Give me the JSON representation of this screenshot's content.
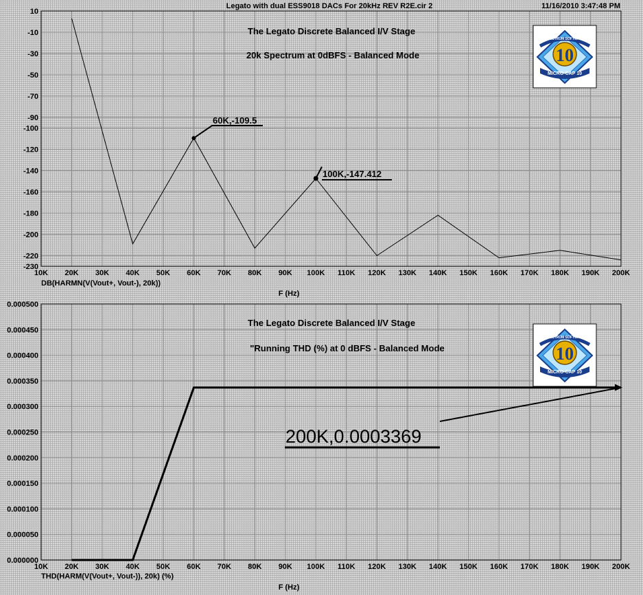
{
  "header": {
    "title": "Legato with dual ESS9018 DACs For 20kHz REV R2E.cir 2",
    "timestamp": "11/16/2010 3:47:48 PM"
  },
  "colors": {
    "background": "#c8c8c8",
    "grid": "#8c8c8c",
    "trace": "#000000",
    "logo_blue": "#4aa8e8",
    "logo_gold": "#e8b000"
  },
  "logo": {
    "number": "10",
    "ribbon": "MICRO-CAP 10",
    "top_text": "SPECTRUM SOFTWARE",
    "icon": "microcap-10-logo"
  },
  "chart_data": [
    {
      "type": "line",
      "title_lines": [
        "The Legato Discrete Balanced I/V Stage",
        "20k Spectrum at 0dBFS - Balanced Mode"
      ],
      "x": [
        20000,
        40000,
        60000,
        80000,
        100000,
        120000,
        140000,
        160000,
        180000,
        200000
      ],
      "y": [
        3,
        -209,
        -109.5,
        -213,
        -147.412,
        -220,
        -182,
        -222,
        -215,
        -224
      ],
      "xlim": [
        10000,
        200000
      ],
      "ylim": [
        -230,
        10
      ],
      "x_ticks": [
        "10K",
        "20K",
        "30K",
        "40K",
        "50K",
        "60K",
        "70K",
        "80K",
        "90K",
        "100K",
        "110K",
        "120K",
        "130K",
        "140K",
        "150K",
        "160K",
        "170K",
        "180K",
        "190K",
        "200K"
      ],
      "y_ticks": [
        {
          "v": 10,
          "label": "10"
        },
        {
          "v": -10,
          "label": "-10"
        },
        {
          "v": -30,
          "label": "-30"
        },
        {
          "v": -50,
          "label": "-50"
        },
        {
          "v": -70,
          "label": "-70"
        },
        {
          "v": -90,
          "label": "-90"
        },
        {
          "v": -100,
          "label": "-100"
        },
        {
          "v": -120,
          "label": "-120"
        },
        {
          "v": -140,
          "label": "-140"
        },
        {
          "v": -160,
          "label": "-160"
        },
        {
          "v": -180,
          "label": "-180"
        },
        {
          "v": -200,
          "label": "-200"
        },
        {
          "v": -220,
          "label": "-220"
        },
        {
          "v": -230,
          "label": "-230"
        }
      ],
      "xlabel": "F (Hz)",
      "ylabel": "DB(HARMN(V(Vout+, Vout-), 20k))",
      "annotations": [
        {
          "x": 60000,
          "y": -109.5,
          "text": "60K,-109.5"
        },
        {
          "x": 100000,
          "y": -147.412,
          "text": "100K,-147.412"
        }
      ],
      "grid": true
    },
    {
      "type": "line",
      "title_lines": [
        "The Legato Discrete Balanced I/V Stage",
        "\"Running THD (%) at 0 dBFS - Balanced Mode"
      ],
      "x": [
        20000,
        40000,
        60000,
        200000
      ],
      "y": [
        0,
        0,
        0.0003369,
        0.0003369
      ],
      "xlim": [
        10000,
        200000
      ],
      "ylim": [
        0,
        0.0005
      ],
      "x_ticks": [
        "10K",
        "20K",
        "30K",
        "40K",
        "50K",
        "60K",
        "70K",
        "80K",
        "90K",
        "100K",
        "110K",
        "120K",
        "130K",
        "140K",
        "150K",
        "160K",
        "170K",
        "180K",
        "190K",
        "200K"
      ],
      "y_ticks": [
        {
          "v": 0.0005,
          "label": "0.000500"
        },
        {
          "v": 0.00045,
          "label": "0.000450"
        },
        {
          "v": 0.0004,
          "label": "0.000400"
        },
        {
          "v": 0.00035,
          "label": "0.000350"
        },
        {
          "v": 0.0003,
          "label": "0.000300"
        },
        {
          "v": 0.00025,
          "label": "0.000250"
        },
        {
          "v": 0.0002,
          "label": "0.000200"
        },
        {
          "v": 0.00015,
          "label": "0.000150"
        },
        {
          "v": 0.0001,
          "label": "0.000100"
        },
        {
          "v": 5e-05,
          "label": "0.000050"
        },
        {
          "v": 0,
          "label": "0.000000"
        }
      ],
      "xlabel": "F (Hz)",
      "ylabel": "THD(HARM(V(Vout+, Vout-)), 20k) (%)",
      "annotations": [
        {
          "x": 200000,
          "y": 0.0003369,
          "text": "200K,0.0003369"
        }
      ],
      "grid": true
    }
  ]
}
